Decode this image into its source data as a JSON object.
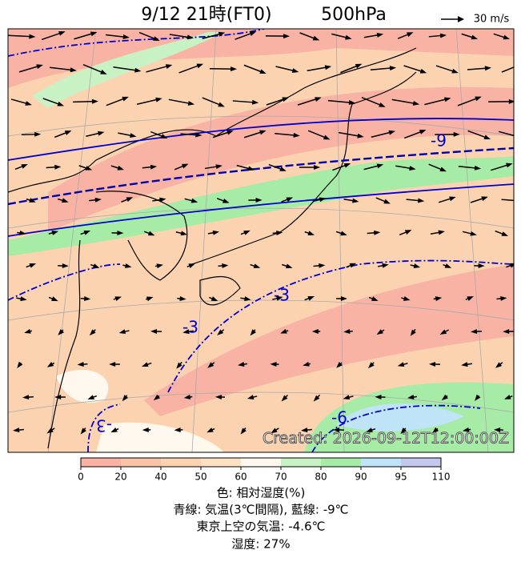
{
  "header": {
    "title": "9/12 21時(FT0)",
    "level": "500hPa",
    "wind_scale": "30 m/s"
  },
  "map": {
    "contour_labels": [
      "-9",
      "-3",
      "-3",
      "-6",
      "-3"
    ],
    "created": "Created: 2026-09-12T12:00:00Z"
  },
  "colorbar": {
    "ticks": [
      0,
      20,
      40,
      50,
      60,
      70,
      80,
      90,
      95,
      110
    ],
    "colors": [
      "#f8b3a4",
      "#f9c3a8",
      "#fcd3b0",
      "#fde2c2",
      "#fff8ee",
      "#c8f2c4",
      "#a6eca6",
      "#bfe4f7",
      "#c3c8ef"
    ]
  },
  "caption": [
    "色: 相対湿度(%)",
    "青線: 気温(3℃間隔), 藍線: -9℃",
    "東京上空の気温: -4.6℃",
    "湿度: 27%"
  ]
}
